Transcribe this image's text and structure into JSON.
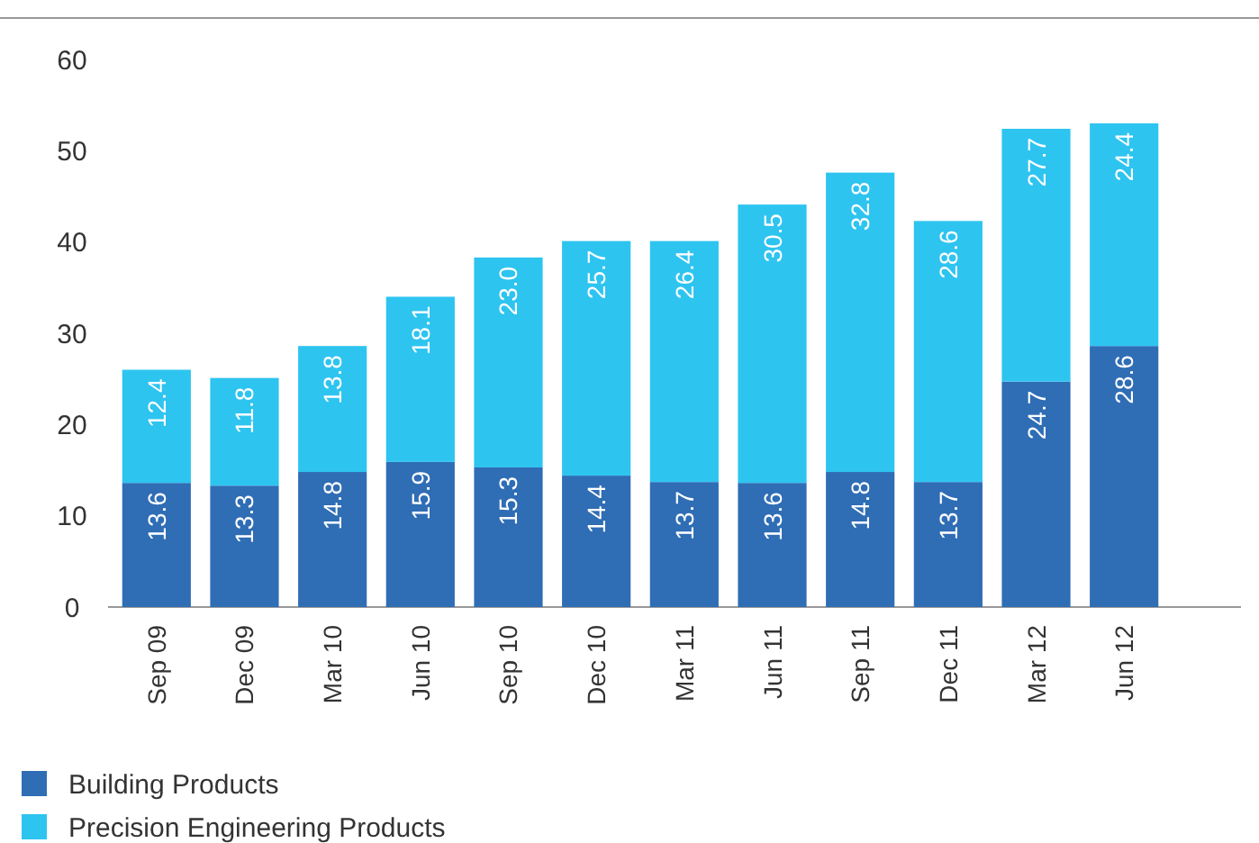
{
  "chart_data": {
    "type": "bar",
    "stacked": true,
    "categories": [
      "Sep 09",
      "Dec 09",
      "Mar 10",
      "Jun 10",
      "Sep 10",
      "Dec 10",
      "Mar 11",
      "Jun 11",
      "Sep 11",
      "Dec 11",
      "Mar 12",
      "Jun 12"
    ],
    "series": [
      {
        "name": "Building Products",
        "color": "#2f6db5",
        "values": [
          13.6,
          13.3,
          14.8,
          15.9,
          15.3,
          14.4,
          13.7,
          13.6,
          14.8,
          13.7,
          24.7,
          28.6
        ]
      },
      {
        "name": "Precision Engineering Products",
        "color": "#2ec4f0",
        "values": [
          12.4,
          11.8,
          13.8,
          18.1,
          23.0,
          25.7,
          26.4,
          30.5,
          32.8,
          28.6,
          27.7,
          24.4
        ]
      }
    ],
    "value_labels": [
      [
        "13.6",
        "13.3",
        "14.8",
        "15.9",
        "15.3",
        "14.4",
        "13.7",
        "13.6",
        "14.8",
        "13.7",
        "24.7",
        "28.6"
      ],
      [
        "12.4",
        "11.8",
        "13.8",
        "18.1",
        "23.0",
        "25.7",
        "26.4",
        "30.5",
        "32.8",
        "28.6",
        "27.7",
        "24.4"
      ]
    ],
    "ylim": [
      0,
      60
    ],
    "yticks": [
      0,
      10,
      20,
      30,
      40,
      50,
      60
    ],
    "grid": false,
    "legend": "bottom left"
  }
}
